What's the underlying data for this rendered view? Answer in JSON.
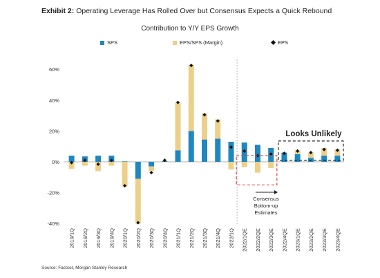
{
  "header": {
    "exhibit_label": "Exhibit 2:",
    "exhibit_title": "Operating Leverage Has Rolled Over but Consensus Expects a Quick Rebound"
  },
  "source": "Source: Factset, Morgan Stanley Research",
  "colors": {
    "sps": "#1e87c0",
    "margin": "#ecd08a",
    "eps": "#111111",
    "red_box": "#e23b3b"
  },
  "chart_data": {
    "type": "bar",
    "stacked": true,
    "title": "Contribution to Y/Y EPS Growth",
    "ylim": [
      -40,
      65
    ],
    "yticks": [
      -40,
      -20,
      0,
      20,
      40,
      60
    ],
    "ytick_labels": [
      "-40%",
      "-20%",
      "0%",
      "20%",
      "40%",
      "60%"
    ],
    "legend_position": "top",
    "legend": [
      "SPS",
      "EPS/SPS (Margin)",
      "EPS"
    ],
    "categories": [
      "2019/1Q",
      "2019/2Q",
      "2019/3Q",
      "2019/4Q",
      "2020/1Q",
      "2020/2Q",
      "2020/3Q",
      "2020/4Q",
      "2021/1Q",
      "2021/2Q",
      "2021/3Q",
      "2021/4Q",
      "2022/1Q",
      "2022/1QE",
      "2022/2QE",
      "2022/3QE",
      "2022/4QE",
      "2023/1QE",
      "2023/2QE",
      "2023/3QE",
      "2023/4QE"
    ],
    "series": [
      {
        "name": "SPS",
        "kind": "bar",
        "values": [
          4,
          3.5,
          4,
          4,
          0.3,
          -11,
          -3,
          0.5,
          7.5,
          20,
          14.5,
          15,
          13,
          12.5,
          11,
          9,
          6,
          5,
          2.5,
          4,
          4
        ]
      },
      {
        "name": "EPS/SPS (Margin)",
        "kind": "bar",
        "values": [
          -4.5,
          -2.5,
          -6,
          -2.5,
          -16,
          -29,
          -3,
          0.5,
          31,
          43,
          17,
          12.5,
          -5,
          -3.5,
          -7,
          -4,
          0,
          2.5,
          3.5,
          5,
          4
        ]
      },
      {
        "name": "EPS",
        "kind": "marker",
        "values": [
          -0.5,
          1,
          -1.5,
          1,
          -15.5,
          -39.5,
          -7,
          1,
          38.5,
          62.5,
          30.5,
          26.5,
          9.5,
          7,
          4,
          5,
          5.5,
          7,
          6,
          8,
          7.5
        ]
      }
    ],
    "annotations": {
      "looks_unlikely": "Looks Unlikely",
      "consensus_lines": [
        "Consensus",
        "Bottom-up",
        "Estimates"
      ]
    }
  }
}
